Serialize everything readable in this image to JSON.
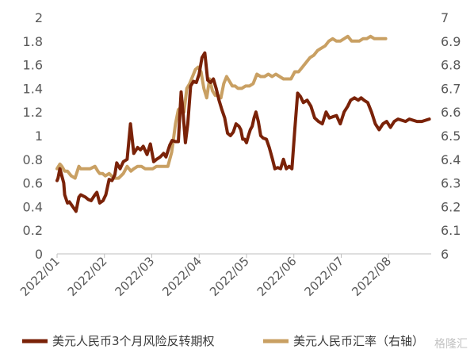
{
  "chart_data": {
    "type": "line",
    "x_labels": [
      "2022/01",
      "2022/02",
      "2022/03",
      "2022/04",
      "2022/05",
      "2022/06",
      "2022/07",
      "2022/08"
    ],
    "y_left": {
      "ylim": [
        0,
        2
      ],
      "ticks": [
        "0",
        "0.2",
        "0.4",
        "0.6",
        "0.8",
        "1",
        "1.2",
        "1.4",
        "1.6",
        "1.8",
        "2"
      ]
    },
    "y_right": {
      "ylim": [
        6,
        7
      ],
      "ticks": [
        "6",
        "6.1",
        "6.2",
        "6.3",
        "6.4",
        "6.5",
        "6.6",
        "6.7",
        "6.8",
        "6.9",
        "7"
      ]
    },
    "grid": false,
    "legend_position": "bottom",
    "series": [
      {
        "name": "美元人民币3个月风险反转期权",
        "axis": "left",
        "color": "#7a2208",
        "x": [
          0,
          0.02,
          0.06,
          0.1,
          0.14,
          0.16,
          0.22,
          0.26,
          0.33,
          0.4,
          0.46,
          0.5,
          0.6,
          0.66,
          0.72,
          0.8,
          0.84,
          0.9,
          0.97,
          1.03,
          1.1,
          1.16,
          1.22,
          1.26,
          1.33,
          1.4,
          1.48,
          1.55,
          1.62,
          1.7,
          1.76,
          1.82,
          1.9,
          1.97,
          2.04,
          2.1,
          2.18,
          2.25,
          2.3,
          2.38,
          2.43,
          2.5,
          2.56,
          2.62,
          2.66,
          2.71,
          2.76,
          2.82,
          2.88,
          2.94,
          3.0,
          3.06,
          3.12,
          3.18,
          3.24,
          3.3,
          3.36,
          3.42,
          3.48,
          3.54,
          3.6,
          3.66,
          3.72,
          3.78,
          3.84,
          3.88,
          3.92,
          3.96,
          4.0,
          4.04,
          4.08,
          4.12,
          4.16,
          4.2,
          4.25,
          4.3,
          4.35,
          4.42,
          4.48,
          4.55,
          4.6,
          4.66,
          4.72,
          4.78,
          4.84,
          4.9,
          4.96,
          5.02,
          5.08,
          5.14,
          5.2,
          5.28,
          5.36,
          5.44,
          5.52,
          5.6,
          5.68,
          5.75,
          5.82,
          5.9,
          5.98,
          6.06,
          6.14,
          6.2,
          6.28,
          6.36,
          6.42,
          6.48,
          6.56,
          6.64,
          6.72,
          6.8,
          6.88,
          6.96,
          7.04,
          7.12,
          7.2,
          7.28,
          7.36,
          7.44,
          7.52,
          7.6,
          7.7,
          7.78,
          7.86
        ],
        "y": [
          0.62,
          0.64,
          0.72,
          0.66,
          0.6,
          0.5,
          0.43,
          0.44,
          0.4,
          0.36,
          0.48,
          0.5,
          0.48,
          0.46,
          0.45,
          0.5,
          0.52,
          0.43,
          0.45,
          0.5,
          0.63,
          0.62,
          0.67,
          0.77,
          0.72,
          0.78,
          0.8,
          1.1,
          0.85,
          0.9,
          0.88,
          0.91,
          0.84,
          0.93,
          0.78,
          0.8,
          0.82,
          0.85,
          0.82,
          0.92,
          0.96,
          0.95,
          0.95,
          1.37,
          1.2,
          0.94,
          1.1,
          1.42,
          1.46,
          1.45,
          1.52,
          1.66,
          1.7,
          1.47,
          1.45,
          1.48,
          1.4,
          1.3,
          1.22,
          1.15,
          1.02,
          1.0,
          1.03,
          1.1,
          1.08,
          1.05,
          0.97,
          0.97,
          0.94,
          1.0,
          1.05,
          1.08,
          1.15,
          1.2,
          1.12,
          1.0,
          0.98,
          0.97,
          0.9,
          0.8,
          0.72,
          0.73,
          0.72,
          0.8,
          0.72,
          0.74,
          0.72,
          1.05,
          1.36,
          1.33,
          1.28,
          1.3,
          1.25,
          1.15,
          1.12,
          1.1,
          1.2,
          1.15,
          1.16,
          1.17,
          1.1,
          1.2,
          1.25,
          1.3,
          1.32,
          1.3,
          1.32,
          1.3,
          1.28,
          1.2,
          1.1,
          1.05,
          1.1,
          1.12,
          1.07,
          1.12,
          1.14,
          1.13,
          1.12,
          1.14,
          1.13,
          1.12,
          1.12,
          1.13,
          1.14
        ],
        "x_note_removed": true
      },
      {
        "name": "美元人民币汇率（右轴）",
        "axis": "right",
        "color": "#c9a063",
        "x": [
          0,
          0.06,
          0.1,
          0.16,
          0.22,
          0.3,
          0.38,
          0.46,
          0.5,
          0.6,
          0.7,
          0.8,
          0.86,
          0.9,
          0.96,
          1.02,
          1.1,
          1.2,
          1.3,
          1.4,
          1.48,
          1.56,
          1.62,
          1.7,
          1.78,
          1.86,
          1.94,
          2.02,
          2.1,
          2.18,
          2.26,
          2.34,
          2.42,
          2.5,
          2.56,
          2.62,
          2.68,
          2.74,
          2.8,
          2.86,
          2.92,
          2.98,
          3.04,
          3.1,
          3.16,
          3.22,
          3.28,
          3.34,
          3.4,
          3.46,
          3.52,
          3.58,
          3.64,
          3.7,
          3.76,
          3.82,
          3.9,
          3.98,
          4.06,
          4.14,
          4.22,
          4.3,
          4.38,
          4.46,
          4.54,
          4.62,
          4.7,
          4.78,
          4.86,
          4.94,
          5.02,
          5.1,
          5.18,
          5.26,
          5.34,
          5.42,
          5.5,
          5.58,
          5.66,
          5.74,
          5.82,
          5.9,
          5.98,
          6.06,
          6.14,
          6.22,
          6.3,
          6.38,
          6.46,
          6.54,
          6.62,
          6.7,
          6.78,
          6.86,
          6.94
        ],
        "y": [
          6.36,
          6.38,
          6.37,
          6.35,
          6.35,
          6.33,
          6.32,
          6.37,
          6.36,
          6.36,
          6.36,
          6.37,
          6.35,
          6.34,
          6.34,
          6.33,
          6.34,
          6.32,
          6.32,
          6.34,
          6.37,
          6.35,
          6.36,
          6.37,
          6.37,
          6.36,
          6.36,
          6.36,
          6.37,
          6.37,
          6.37,
          6.37,
          6.43,
          6.55,
          6.61,
          6.62,
          6.6,
          6.7,
          6.72,
          6.75,
          6.78,
          6.79,
          6.77,
          6.7,
          6.66,
          6.74,
          6.69,
          6.67,
          6.67,
          6.66,
          6.72,
          6.75,
          6.73,
          6.71,
          6.71,
          6.7,
          6.7,
          6.71,
          6.71,
          6.72,
          6.76,
          6.75,
          6.75,
          6.76,
          6.75,
          6.76,
          6.75,
          6.74,
          6.74,
          6.74,
          6.77,
          6.77,
          6.79,
          6.81,
          6.83,
          6.84,
          6.86,
          6.87,
          6.88,
          6.9,
          6.91,
          6.9,
          6.9,
          6.91,
          6.92,
          6.9,
          6.9,
          6.9,
          6.91,
          6.91,
          6.92,
          6.91,
          6.91,
          6.91,
          6.91
        ]
      }
    ]
  },
  "legend": {
    "items": [
      {
        "label": "美元人民币3个月风险反转期权",
        "color": "#7a2208"
      },
      {
        "label": "美元人民币汇率（右轴）",
        "color": "#c9a063"
      }
    ]
  },
  "watermark": "格隆汇"
}
